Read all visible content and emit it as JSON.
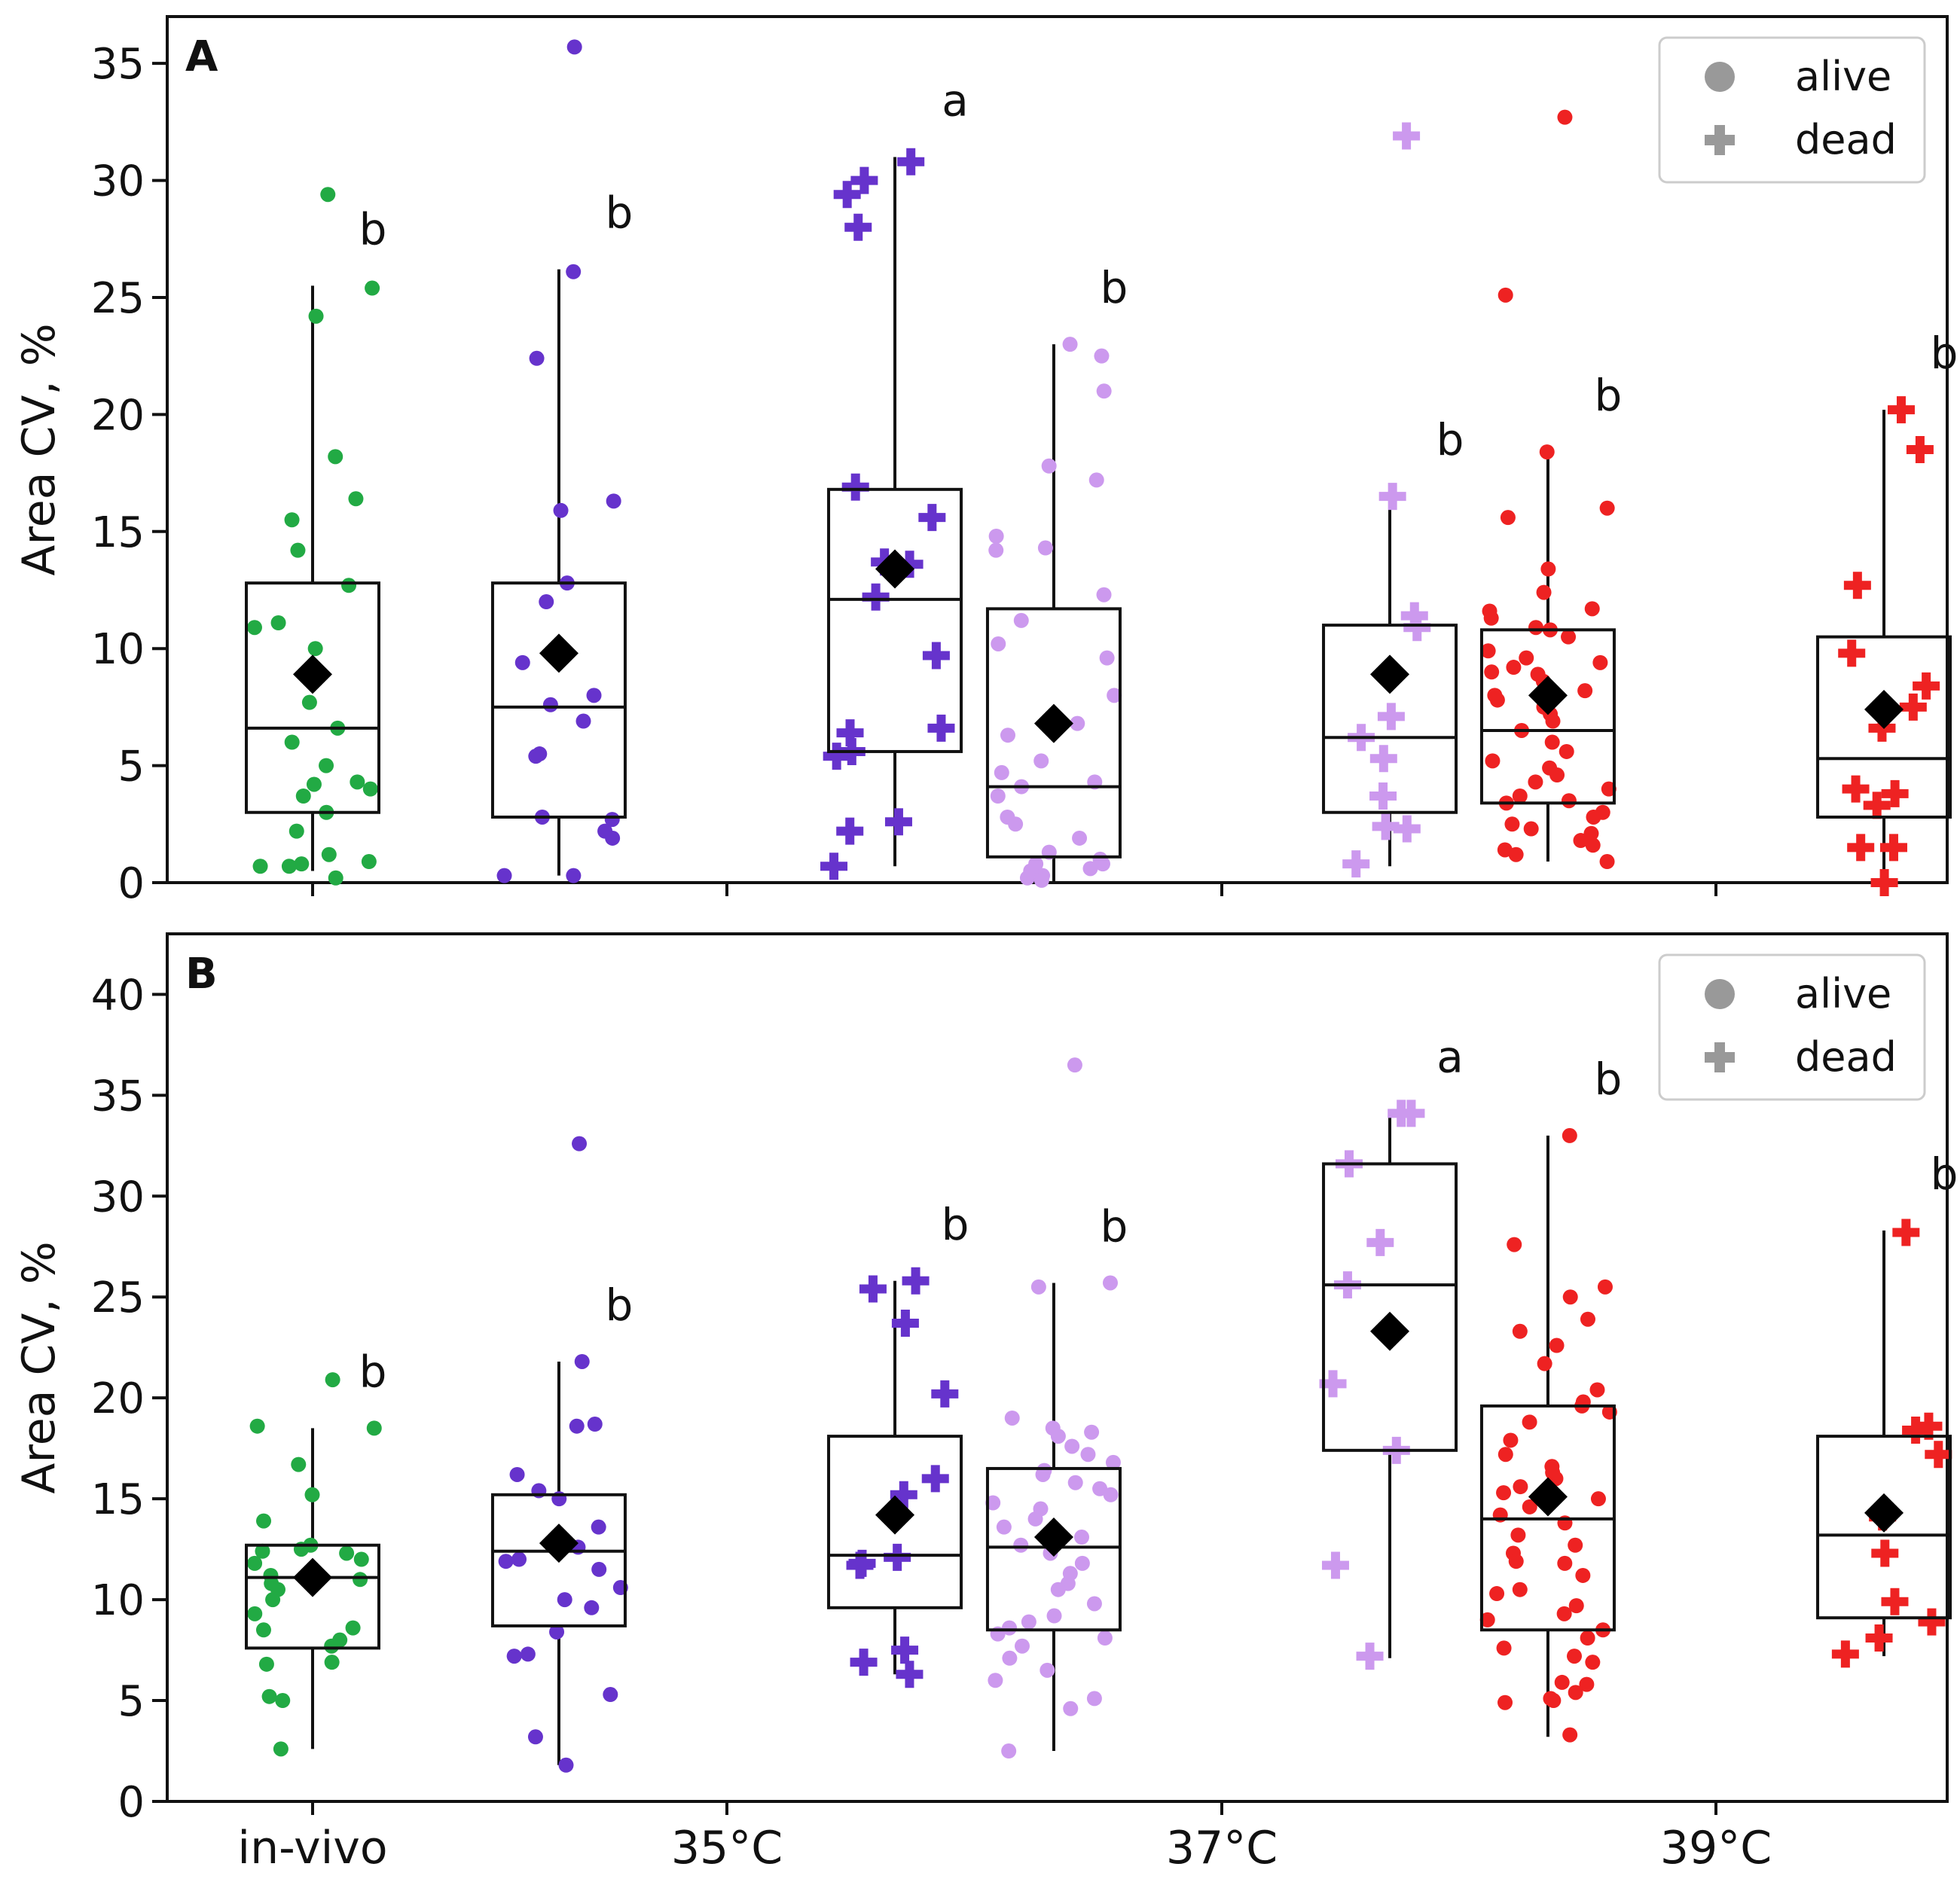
{
  "chart_data": [
    {
      "type": "box",
      "panel": "A",
      "ylabel": "Area CV, %",
      "ylim": [
        0,
        37
      ],
      "yticks": [
        0,
        5,
        10,
        15,
        20,
        25,
        30,
        35
      ],
      "categories": [
        "in-vivo",
        "35°C",
        "37°C",
        "39°C"
      ],
      "legend": {
        "position": "top-right",
        "entries": [
          {
            "label": "alive",
            "marker": "circle"
          },
          {
            "label": "dead",
            "marker": "plus"
          }
        ]
      },
      "boxes": [
        {
          "category": "in-vivo",
          "state": "alive",
          "color": "#22aa44",
          "offset": 0.0,
          "min": 0.5,
          "q1": 3.0,
          "median": 6.6,
          "q3": 12.8,
          "max": 25.5,
          "mean": 8.9,
          "letter": "b",
          "points": [
            29.4,
            25.4,
            24.2,
            18.2,
            16.4,
            15.5,
            14.2,
            12.7,
            11.1,
            10.9,
            10.0,
            9.0,
            7.7,
            6.6,
            6.0,
            5.0,
            4.3,
            4.2,
            4.0,
            3.7,
            3.0,
            2.2,
            1.2,
            0.9,
            0.8,
            0.7,
            0.7,
            0.2
          ]
        },
        {
          "category": "35°C",
          "state": "alive",
          "color": "#6633cc",
          "offset": -0.17,
          "min": 0.3,
          "q1": 2.8,
          "median": 7.5,
          "q3": 12.8,
          "max": 26.2,
          "mean": 9.8,
          "letter": "b",
          "points": [
            35.7,
            26.1,
            22.4,
            16.3,
            15.9,
            12.8,
            12.0,
            9.4,
            8.0,
            7.6,
            6.9,
            5.5,
            5.4,
            2.8,
            2.7,
            2.2,
            1.9,
            0.3,
            0.3
          ]
        },
        {
          "category": "35°C",
          "state": "dead",
          "color": "#6633cc",
          "offset": 0.17,
          "min": 0.7,
          "q1": 5.6,
          "median": 12.1,
          "q3": 16.8,
          "max": 31.0,
          "mean": 13.4,
          "letter": "a",
          "points": [
            30.8,
            30.0,
            29.4,
            28.0,
            16.9,
            15.6,
            13.7,
            13.6,
            12.2,
            9.7,
            6.6,
            6.4,
            5.6,
            5.4,
            2.6,
            2.2,
            0.7
          ]
        },
        {
          "category": "37°C",
          "state": "alive",
          "color": "#cc99ee",
          "offset": -0.17,
          "min": 0.0,
          "q1": 1.1,
          "median": 4.1,
          "q3": 11.7,
          "max": 23.0,
          "mean": 6.8,
          "letter": "b",
          "points": [
            23.0,
            22.5,
            21.0,
            17.8,
            17.2,
            14.8,
            14.3,
            14.2,
            12.3,
            11.2,
            10.2,
            9.6,
            8.0,
            6.8,
            6.3,
            5.2,
            4.7,
            4.3,
            4.1,
            3.7,
            2.8,
            2.5,
            1.9,
            1.3,
            1.0,
            0.8,
            0.8,
            0.6,
            0.5,
            0.3,
            0.2,
            0.1
          ]
        },
        {
          "category": "37°C",
          "state": "dead",
          "color": "#cc99ee",
          "offset": 0.17,
          "min": 0.7,
          "q1": 3.0,
          "median": 6.2,
          "q3": 11.0,
          "max": 16.5,
          "mean": 8.9,
          "letter": "b",
          "points": [
            31.9,
            16.5,
            11.4,
            10.9,
            7.1,
            6.2,
            5.3,
            3.7,
            2.4,
            2.3,
            0.8
          ]
        },
        {
          "category": "39°C",
          "state": "alive",
          "color": "#ee2222",
          "offset": -0.17,
          "min": 0.9,
          "q1": 3.4,
          "median": 6.5,
          "q3": 10.8,
          "max": 18.4,
          "mean": 8.0,
          "letter": "b",
          "points": [
            32.7,
            25.1,
            18.4,
            16.0,
            15.6,
            13.4,
            12.4,
            11.7,
            11.6,
            11.3,
            10.9,
            10.8,
            10.5,
            9.9,
            9.6,
            9.4,
            9.2,
            9.0,
            8.9,
            8.6,
            8.2,
            8.0,
            7.8,
            7.5,
            7.2,
            6.9,
            6.5,
            6.0,
            5.6,
            5.2,
            4.9,
            4.6,
            4.3,
            4.0,
            3.7,
            3.5,
            3.4,
            3.0,
            2.8,
            2.5,
            2.3,
            2.1,
            1.8,
            1.6,
            1.4,
            1.2,
            0.9
          ]
        },
        {
          "category": "39°C",
          "state": "dead",
          "color": "#ee2222",
          "offset": 0.17,
          "min": 0.0,
          "q1": 2.8,
          "median": 5.3,
          "q3": 10.5,
          "max": 20.2,
          "mean": 7.4,
          "letter": "b",
          "points": [
            20.2,
            18.5,
            12.7,
            9.8,
            8.4,
            7.5,
            6.6,
            4.0,
            3.8,
            3.3,
            1.5,
            1.5,
            0.0
          ]
        }
      ]
    },
    {
      "type": "box",
      "panel": "B",
      "ylabel": "Area CV, %",
      "ylim": [
        0,
        43
      ],
      "yticks": [
        0,
        5,
        10,
        15,
        20,
        25,
        30,
        35,
        40
      ],
      "categories": [
        "in-vivo",
        "35°C",
        "37°C",
        "39°C"
      ],
      "xlabel_ticks": [
        "in-vivo",
        "35°C",
        "37°C",
        "39°C"
      ],
      "legend": {
        "position": "top-right",
        "entries": [
          {
            "label": "alive",
            "marker": "circle"
          },
          {
            "label": "dead",
            "marker": "plus"
          }
        ]
      },
      "boxes": [
        {
          "category": "in-vivo",
          "state": "alive",
          "color": "#22aa44",
          "offset": 0.0,
          "min": 2.6,
          "q1": 7.6,
          "median": 11.1,
          "q3": 12.7,
          "max": 18.5,
          "mean": 11.1,
          "letter": "b",
          "points": [
            20.9,
            18.6,
            18.5,
            16.7,
            15.2,
            13.9,
            12.7,
            12.5,
            12.4,
            12.3,
            12.0,
            11.8,
            11.2,
            11.0,
            10.8,
            10.5,
            10.0,
            9.3,
            8.6,
            8.5,
            8.0,
            7.7,
            6.9,
            6.8,
            5.2,
            5.0,
            2.6
          ]
        },
        {
          "category": "35°C",
          "state": "alive",
          "color": "#6633cc",
          "offset": -0.17,
          "min": 1.8,
          "q1": 8.7,
          "median": 12.4,
          "q3": 15.2,
          "max": 21.8,
          "mean": 12.8,
          "letter": "b",
          "points": [
            32.6,
            21.8,
            18.7,
            18.6,
            16.2,
            15.4,
            15.0,
            13.6,
            12.6,
            12.0,
            11.9,
            11.5,
            10.6,
            10.0,
            9.6,
            8.4,
            7.3,
            7.2,
            5.3,
            3.2,
            1.8
          ]
        },
        {
          "category": "35°C",
          "state": "dead",
          "color": "#6633cc",
          "offset": 0.17,
          "min": 6.3,
          "q1": 9.6,
          "median": 12.2,
          "q3": 18.1,
          "max": 25.8,
          "mean": 14.2,
          "letter": "b",
          "points": [
            25.8,
            25.4,
            23.7,
            20.2,
            16.0,
            15.2,
            12.1,
            11.8,
            11.7,
            7.5,
            6.9,
            6.3
          ]
        },
        {
          "category": "37°C",
          "state": "alive",
          "color": "#cc99ee",
          "offset": -0.17,
          "min": 2.5,
          "q1": 8.5,
          "median": 12.6,
          "q3": 16.5,
          "max": 25.7,
          "mean": 13.1,
          "letter": "b",
          "points": [
            36.5,
            25.7,
            25.5,
            19.0,
            18.5,
            18.3,
            18.1,
            17.6,
            17.2,
            16.8,
            16.4,
            16.2,
            15.8,
            15.5,
            15.2,
            14.8,
            14.5,
            14.0,
            13.6,
            13.1,
            12.7,
            12.3,
            11.8,
            11.3,
            10.8,
            10.5,
            9.8,
            9.2,
            8.9,
            8.6,
            8.3,
            8.1,
            7.7,
            7.1,
            6.5,
            6.0,
            5.1,
            4.6,
            2.5
          ]
        },
        {
          "category": "37°C",
          "state": "dead",
          "color": "#cc99ee",
          "offset": 0.17,
          "min": 7.1,
          "q1": 17.4,
          "median": 25.6,
          "q3": 31.6,
          "max": 34.1,
          "mean": 23.3,
          "letter": "a",
          "points": [
            34.1,
            34.1,
            31.6,
            27.7,
            25.6,
            20.7,
            17.4,
            11.7,
            7.2
          ]
        },
        {
          "category": "39°C",
          "state": "alive",
          "color": "#ee2222",
          "offset": -0.17,
          "min": 3.2,
          "q1": 8.5,
          "median": 14.0,
          "q3": 19.6,
          "max": 33.0,
          "mean": 15.1,
          "letter": "b",
          "points": [
            33.0,
            27.6,
            25.5,
            25.0,
            23.9,
            23.3,
            22.6,
            21.7,
            20.4,
            19.8,
            19.6,
            19.3,
            18.8,
            17.9,
            17.2,
            16.6,
            16.3,
            16.0,
            15.6,
            15.3,
            15.0,
            14.6,
            14.2,
            13.8,
            13.2,
            12.7,
            12.3,
            11.9,
            11.8,
            11.2,
            10.5,
            10.3,
            9.7,
            9.3,
            9.0,
            8.5,
            8.1,
            7.6,
            7.2,
            6.9,
            5.9,
            5.8,
            5.4,
            5.1,
            5.0,
            4.9,
            3.3
          ]
        },
        {
          "category": "39°C",
          "state": "dead",
          "color": "#ee2222",
          "offset": 0.17,
          "min": 7.2,
          "q1": 9.1,
          "median": 13.2,
          "q3": 18.1,
          "max": 28.3,
          "mean": 14.3,
          "letter": "b",
          "points": [
            28.2,
            18.6,
            18.4,
            17.2,
            14.1,
            12.3,
            9.9,
            8.9,
            8.1,
            7.3
          ]
        }
      ]
    }
  ]
}
